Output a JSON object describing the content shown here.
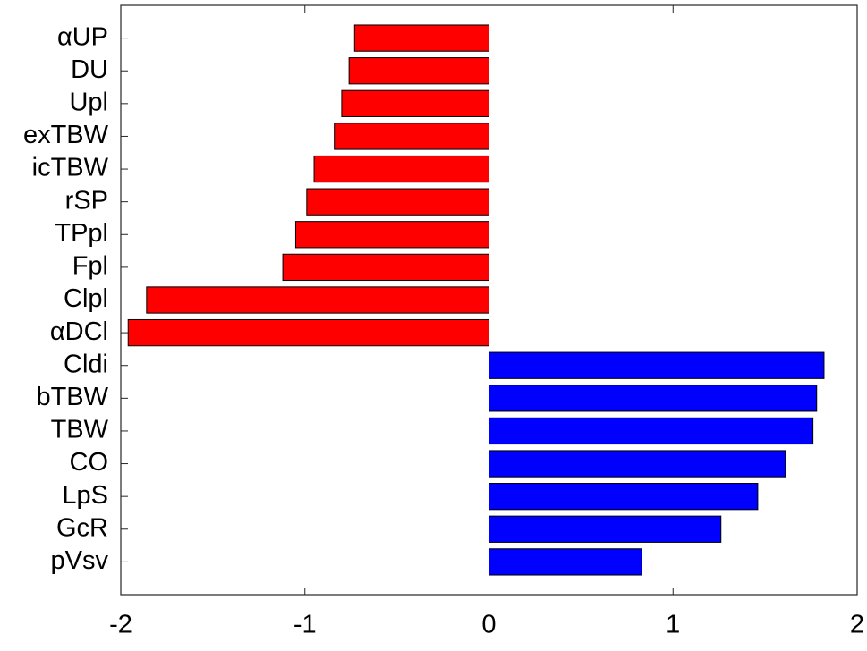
{
  "chart_data": {
    "type": "barh",
    "categories": [
      "αUP",
      "DU",
      "Upl",
      "exTBW",
      "icTBW",
      "rSP",
      "TPpl",
      "Fpl",
      "Clpl",
      "αDCl",
      "Cldi",
      "bTBW",
      "TBW",
      "CO",
      "LpS",
      "GcR",
      "pVsv"
    ],
    "values": [
      -0.73,
      -0.76,
      -0.8,
      -0.84,
      -0.95,
      -0.99,
      -1.05,
      -1.12,
      -1.86,
      -1.96,
      1.82,
      1.78,
      1.76,
      1.61,
      1.46,
      1.26,
      0.83
    ],
    "colors": [
      "#ff0000",
      "#ff0000",
      "#ff0000",
      "#ff0000",
      "#ff0000",
      "#ff0000",
      "#ff0000",
      "#ff0000",
      "#ff0000",
      "#ff0000",
      "#0000ff",
      "#0000ff",
      "#0000ff",
      "#0000ff",
      "#0000ff",
      "#0000ff",
      "#0000ff"
    ],
    "xlim": [
      -2,
      2
    ],
    "xticks": [
      -2,
      -1,
      0,
      1,
      2
    ]
  }
}
